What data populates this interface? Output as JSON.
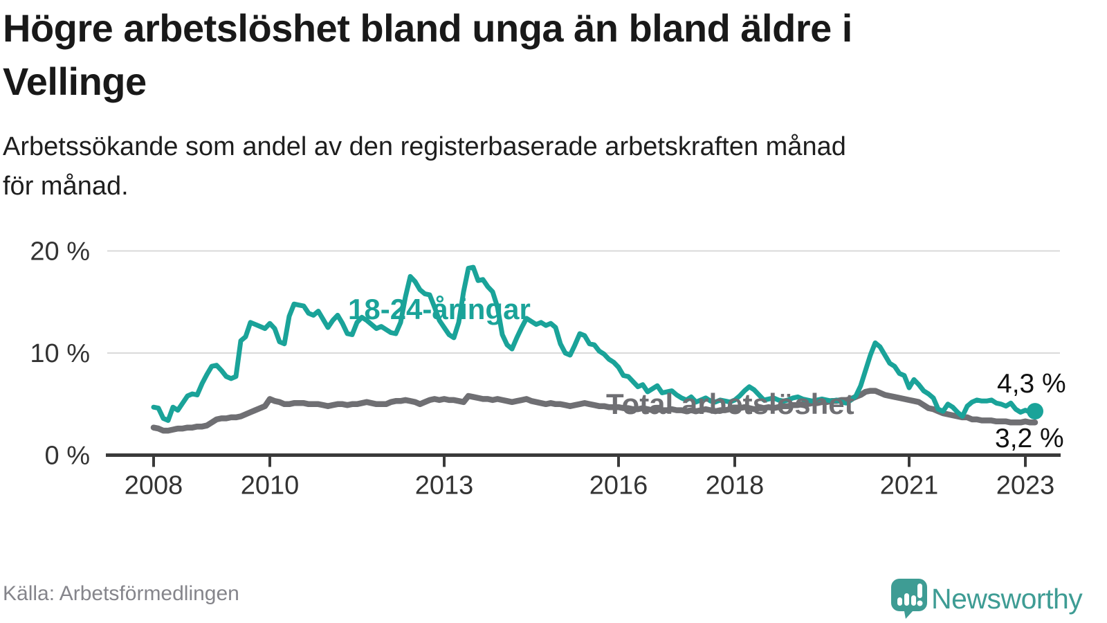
{
  "header": {
    "title_line1": "Högre arbetslöshet bland unga än bland äldre i",
    "title_line2": "Vellinge",
    "subtitle_line1": "Arbetssökande som andel av den registerbaserade arbetskraften månad",
    "subtitle_line2": "för månad."
  },
  "chart_data": {
    "type": "line",
    "unit": "%",
    "frequency": "monthly",
    "start": "2008-01",
    "end": "2023-03",
    "ylim": [
      0,
      21.5
    ],
    "grid": "horizontal-only",
    "y_ticks": [
      {
        "value": 0,
        "label": "0 %"
      },
      {
        "value": 10,
        "label": "10 %"
      },
      {
        "value": 20,
        "label": "20 %"
      }
    ],
    "x_ticks": [
      {
        "year": 2008,
        "label": "2008"
      },
      {
        "year": 2010,
        "label": "2010"
      },
      {
        "year": 2013,
        "label": "2013"
      },
      {
        "year": 2016,
        "label": "2016"
      },
      {
        "year": 2018,
        "label": "2018"
      },
      {
        "year": 2021,
        "label": "2021"
      },
      {
        "year": 2023,
        "label": "2023"
      }
    ],
    "series": [
      {
        "id": "youth",
        "name": "18-24-åringar",
        "color": "#1AA399",
        "end_label": "4,3 %",
        "end_value": 4.3,
        "values": [
          4.7,
          4.6,
          3.6,
          3.4,
          4.7,
          4.4,
          5.1,
          5.8,
          6.0,
          5.9,
          7.0,
          7.9,
          8.7,
          8.8,
          8.3,
          7.7,
          7.5,
          7.7,
          11.2,
          11.6,
          13.0,
          12.8,
          12.6,
          12.4,
          12.9,
          12.4,
          11.1,
          10.9,
          13.6,
          14.8,
          14.7,
          14.6,
          13.9,
          13.7,
          14.1,
          13.3,
          12.5,
          13.2,
          13.7,
          12.9,
          11.9,
          11.8,
          13.0,
          13.5,
          13.2,
          12.8,
          12.4,
          12.6,
          12.3,
          12.0,
          11.9,
          13.0,
          15.5,
          17.5,
          17.0,
          16.2,
          15.8,
          15.7,
          14.5,
          13.2,
          12.5,
          11.8,
          11.5,
          13.0,
          16.0,
          18.3,
          18.4,
          17.1,
          17.2,
          16.5,
          16.0,
          14.5,
          11.8,
          10.8,
          10.4,
          11.5,
          12.5,
          13.4,
          13.1,
          12.8,
          13.0,
          12.7,
          12.9,
          12.5,
          10.9,
          10.0,
          9.8,
          10.8,
          11.9,
          11.7,
          10.9,
          10.8,
          10.2,
          9.9,
          9.4,
          9.1,
          8.6,
          7.8,
          7.7,
          7.2,
          6.7,
          6.9,
          6.2,
          6.5,
          6.8,
          6.1,
          6.2,
          6.3,
          5.9,
          5.6,
          5.4,
          5.7,
          5.2,
          5.4,
          5.6,
          5.3,
          5.2,
          5.4,
          5.3,
          5.2,
          5.4,
          5.8,
          6.3,
          6.7,
          6.4,
          5.9,
          5.4,
          5.5,
          5.6,
          5.4,
          5.3,
          5.4,
          5.6,
          5.7,
          5.5,
          5.4,
          5.3,
          5.4,
          5.5,
          5.4,
          5.3,
          5.4,
          5.2,
          5.1,
          5.4,
          5.8,
          6.8,
          8.3,
          9.8,
          11.0,
          10.6,
          9.8,
          9.0,
          8.7,
          8.0,
          7.8,
          6.6,
          7.4,
          6.9,
          6.3,
          6.0,
          5.6,
          4.5,
          4.3,
          5.0,
          4.7,
          4.2,
          3.8,
          4.8,
          5.2,
          5.4,
          5.3,
          5.3,
          5.4,
          5.1,
          5.0,
          4.8,
          5.1,
          4.5,
          4.2,
          4.4,
          4.2,
          4.3
        ]
      },
      {
        "id": "total",
        "name": "Total arbetslöshet",
        "color": "#6F6F73",
        "end_label": "3,2 %",
        "end_value": 3.2,
        "values": [
          2.7,
          2.6,
          2.4,
          2.4,
          2.5,
          2.6,
          2.6,
          2.7,
          2.7,
          2.8,
          2.8,
          2.9,
          3.2,
          3.5,
          3.6,
          3.6,
          3.7,
          3.7,
          3.8,
          4.0,
          4.2,
          4.4,
          4.6,
          4.8,
          5.5,
          5.3,
          5.2,
          5.0,
          5.0,
          5.1,
          5.1,
          5.1,
          5.0,
          5.0,
          5.0,
          4.9,
          4.8,
          4.9,
          5.0,
          5.0,
          4.9,
          5.0,
          5.0,
          5.1,
          5.2,
          5.1,
          5.0,
          5.0,
          5.0,
          5.2,
          5.3,
          5.3,
          5.4,
          5.3,
          5.2,
          5.0,
          5.2,
          5.4,
          5.5,
          5.4,
          5.5,
          5.4,
          5.4,
          5.3,
          5.2,
          5.8,
          5.7,
          5.6,
          5.5,
          5.5,
          5.4,
          5.5,
          5.4,
          5.3,
          5.2,
          5.3,
          5.4,
          5.5,
          5.3,
          5.2,
          5.1,
          5.0,
          5.1,
          5.0,
          5.0,
          4.9,
          4.8,
          4.9,
          5.0,
          5.1,
          5.0,
          4.9,
          4.8,
          4.8,
          4.7,
          4.7,
          4.7,
          4.6,
          4.6,
          4.5,
          4.5,
          4.6,
          4.5,
          4.4,
          4.5,
          4.4,
          4.4,
          4.5,
          4.4,
          4.4,
          4.3,
          4.4,
          4.3,
          4.4,
          4.5,
          4.4,
          4.3,
          4.4,
          4.4,
          4.5,
          4.5,
          4.6,
          4.7,
          4.6,
          4.5,
          4.6,
          4.6,
          4.7,
          4.6,
          4.7,
          4.8,
          4.8,
          4.9,
          4.9,
          5.0,
          5.0,
          5.1,
          5.1,
          5.2,
          5.2,
          5.3,
          5.3,
          5.4,
          5.4,
          5.5,
          5.7,
          5.9,
          6.2,
          6.3,
          6.3,
          6.1,
          5.9,
          5.8,
          5.7,
          5.6,
          5.5,
          5.4,
          5.3,
          5.2,
          4.9,
          4.6,
          4.5,
          4.3,
          4.1,
          4.0,
          3.9,
          3.8,
          3.7,
          3.7,
          3.5,
          3.5,
          3.4,
          3.4,
          3.4,
          3.3,
          3.3,
          3.3,
          3.2,
          3.2,
          3.2,
          3.3,
          3.2,
          3.2
        ]
      }
    ]
  },
  "footer": {
    "source": "Källa: Arbetsförmedlingen",
    "brand": "Newsworthy"
  },
  "colors": {
    "background": "#FFFFFF",
    "accent_teal": "#1AA399",
    "total_gray": "#6F6F73",
    "axis": "#3A3A3A",
    "axis_text": "#333333",
    "grid": "#DADADA",
    "logo_teal": "#3E9C94"
  }
}
